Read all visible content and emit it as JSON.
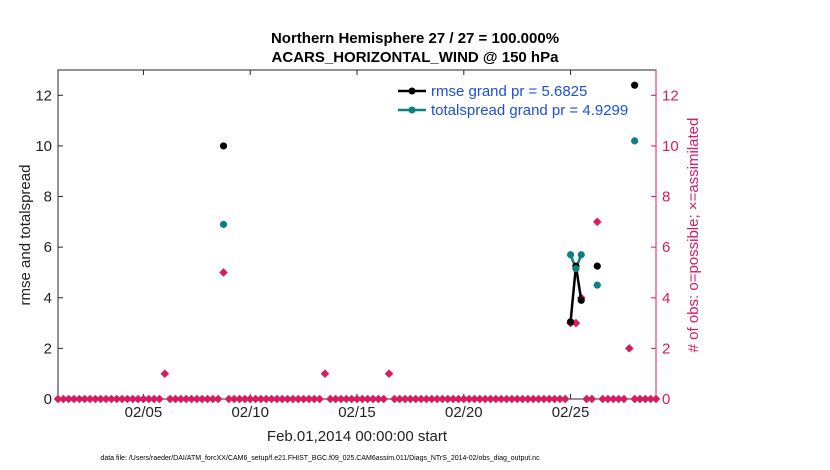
{
  "chart_data": {
    "type": "line",
    "title_line1": "Northern Hemisphere 27 / 27 = 100.000%",
    "title_line2": "ACARS_HORIZONTAL_WIND @ 150 hPa",
    "xlabel": "Feb.01,2014 00:00:00 start",
    "ylabel_left": "rmse and totalspread",
    "ylabel_right": "# of obs: o=possible; ×=assimilated",
    "xlim": [
      1,
      29
    ],
    "ylim": [
      0,
      13
    ],
    "x_ticks": [
      {
        "value": 5,
        "label": "02/05"
      },
      {
        "value": 10,
        "label": "02/10"
      },
      {
        "value": 15,
        "label": "02/15"
      },
      {
        "value": 20,
        "label": "02/20"
      },
      {
        "value": 25,
        "label": "02/25"
      }
    ],
    "y_ticks_left": [
      0,
      2,
      4,
      6,
      8,
      10,
      12
    ],
    "y_ticks_right": [
      0,
      2,
      4,
      6,
      8,
      10,
      12
    ],
    "legend": [
      {
        "label": "rmse grand pr = 5.6825",
        "color": "#1f4fd6",
        "marker_color": "#000000"
      },
      {
        "label": "totalspread grand pr = 4.9299",
        "color": "#1f4fd6",
        "marker_color": "#0f7f7f"
      }
    ],
    "series": [
      {
        "name": "rmse",
        "color": "#000000",
        "points": [
          [
            8.75,
            10.0
          ],
          [
            25.0,
            3.05
          ],
          [
            25.25,
            5.25
          ],
          [
            25.5,
            3.9
          ],
          [
            26.25,
            5.25
          ],
          [
            28.0,
            12.4
          ]
        ]
      },
      {
        "name": "totalspread",
        "color": "#0f7f7f",
        "points": [
          [
            8.75,
            6.9
          ],
          [
            25.0,
            5.7
          ],
          [
            25.25,
            5.15
          ],
          [
            25.5,
            5.7
          ],
          [
            26.25,
            4.5
          ],
          [
            28.0,
            10.2
          ]
        ]
      }
    ],
    "obs_count": {
      "name": "# of obs",
      "color": "#d81b60",
      "nonzero": [
        [
          6.0,
          1
        ],
        [
          8.75,
          5
        ],
        [
          13.5,
          1
        ],
        [
          16.5,
          1
        ],
        [
          25.0,
          3
        ],
        [
          25.25,
          3
        ],
        [
          25.5,
          4
        ],
        [
          26.25,
          7
        ],
        [
          27.75,
          2
        ]
      ],
      "zero_start": 1.0,
      "zero_end": 29.0,
      "zero_step": 0.25
    }
  },
  "footer": "data file: /Users/raeder/DAI/ATM_forcXX/CAM6_setup/f.e21.FHIST_BGC.f09_025.CAM6assim.011/Diags_NTrS_2014-02/obs_diag_output.nc"
}
